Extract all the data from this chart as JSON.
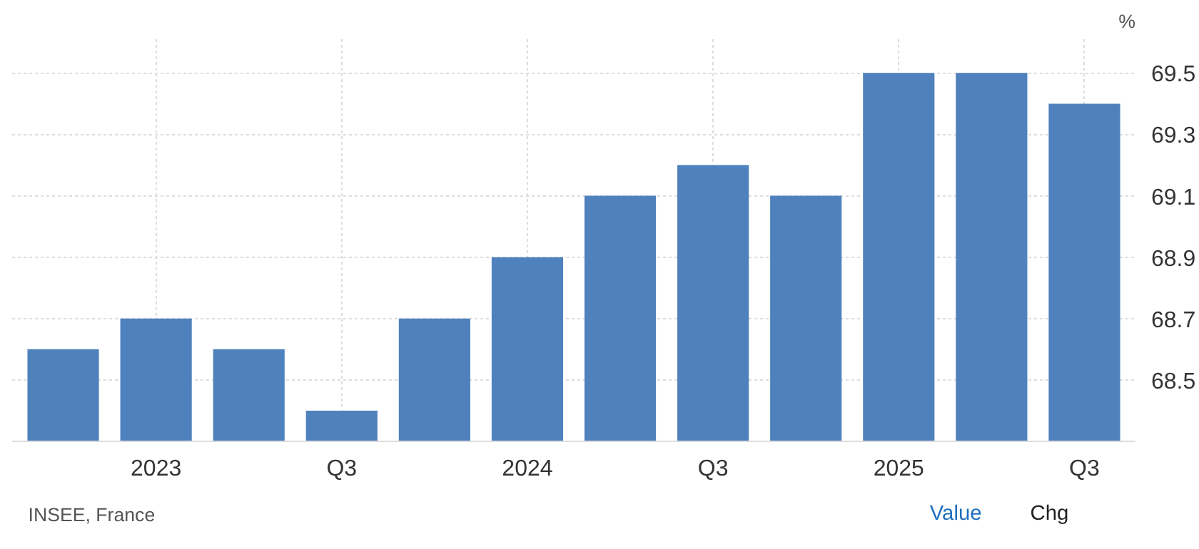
{
  "chart_data": {
    "type": "bar",
    "ylabel": "%",
    "categories": [
      null,
      "2023",
      null,
      "Q3",
      null,
      "2024",
      null,
      "Q3",
      null,
      "2025",
      null,
      "Q3"
    ],
    "values": [
      68.6,
      68.7,
      68.6,
      68.4,
      68.7,
      68.9,
      69.1,
      69.2,
      69.1,
      69.5,
      69.5,
      69.4
    ],
    "color": "#4f81bd",
    "ylim": [
      68.3,
      69.61
    ],
    "yticks": [
      68.5,
      68.7,
      68.9,
      69.1,
      69.3,
      69.5
    ],
    "grid": true,
    "annotations": [
      "INSEE, France",
      "Value",
      "Chg"
    ]
  }
}
